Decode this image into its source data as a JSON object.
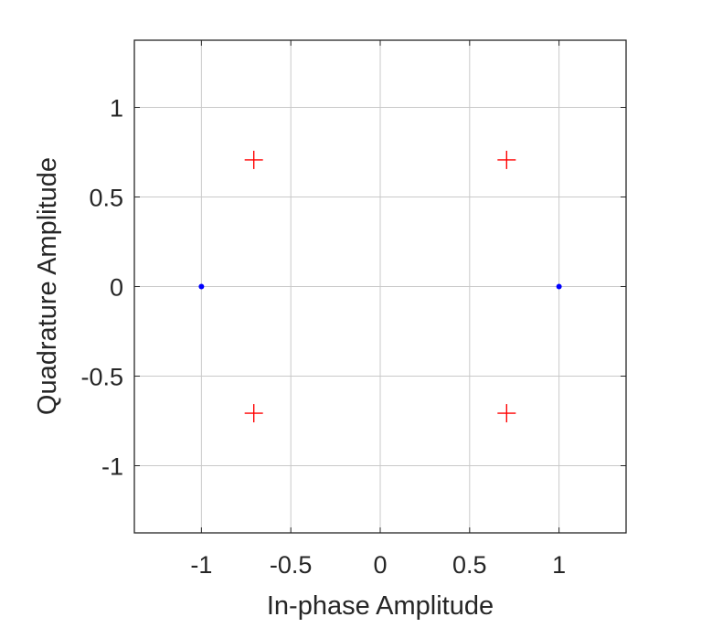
{
  "chart_data": {
    "type": "scatter",
    "title": "",
    "xlabel": "In-phase Amplitude",
    "ylabel": "Quadrature Amplitude",
    "xlim": [
      -1.375,
      1.375
    ],
    "ylim": [
      -1.375,
      1.375
    ],
    "xticks": [
      -1,
      -0.5,
      0,
      0.5,
      1
    ],
    "yticks": [
      -1,
      -0.5,
      0,
      0.5,
      1
    ],
    "xtick_labels": [
      "-1",
      "-0.5",
      "0",
      "0.5",
      "1"
    ],
    "ytick_labels": [
      "-1",
      "-0.5",
      "0",
      "0.5",
      "1"
    ],
    "grid": true,
    "legend": null,
    "series": [
      {
        "marker": "dot",
        "color": "#0000ff",
        "points": [
          {
            "x": -1,
            "y": 0
          },
          {
            "x": 1,
            "y": 0
          }
        ]
      },
      {
        "marker": "plus",
        "color": "#ff0000",
        "points": [
          {
            "x": -0.707,
            "y": 0.707
          },
          {
            "x": 0.707,
            "y": 0.707
          },
          {
            "x": -0.707,
            "y": -0.707
          },
          {
            "x": 0.707,
            "y": -0.707
          }
        ]
      }
    ]
  }
}
